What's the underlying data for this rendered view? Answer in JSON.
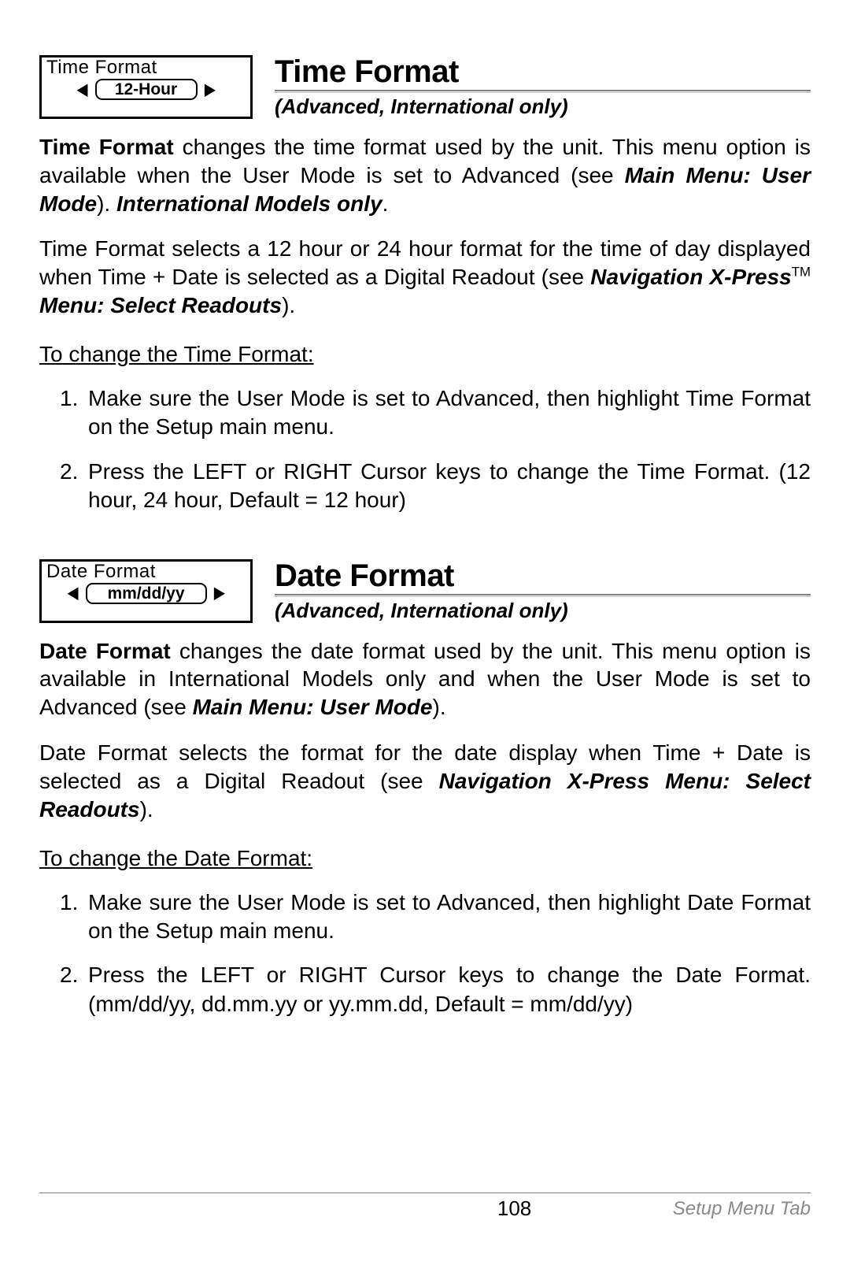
{
  "page": {
    "number": "108",
    "tab": "Setup Menu Tab"
  },
  "timeFormat": {
    "menuBox": {
      "label": "Time Format",
      "value": "12-Hour"
    },
    "title": "Time Format",
    "subtitle": "(Advanced, International only)",
    "para1": {
      "leadBold": "Time Format",
      "rest1": "changes the time format used by the unit. This menu option is available when the User Mode is set to Advanced (see",
      "ref1": "Main Menu: User Mode",
      "rest2": ").",
      "tailItal": "International Models only",
      "period": "."
    },
    "para2": {
      "text1": "Time Format selects a 12 hour or 24 hour format for the time of day displayed when Time + Date is selected as a Digital Readout (see",
      "ref": "Navigation X-Press",
      "tm": "TM",
      "ref2": "Menu: Select Readouts",
      "tail": ")."
    },
    "instrHead": "To change the Time Format:",
    "steps": {
      "s1": "Make sure the User Mode is set to Advanced, then highlight Time Format on the Setup main menu.",
      "s2": "Press the LEFT or RIGHT Cursor keys to change the Time Format. (12 hour, 24 hour, Default = 12 hour)"
    }
  },
  "dateFormat": {
    "menuBox": {
      "label": "Date Format",
      "value": "mm/dd/yy"
    },
    "title": "Date Format",
    "subtitle": "(Advanced, International only)",
    "para1": {
      "leadBold": "Date Format",
      "rest1": "changes the date format used by the unit. This menu option is available in International Models only and when the User Mode is set to Advanced (see",
      "ref1": "Main Menu: User Mode",
      "rest2": ")."
    },
    "para2": {
      "text1": "Date Format selects the format for the date display when Time + Date is selected as a Digital Readout (see",
      "ref": "Navigation X-Press Menu: Select Readouts",
      "tail": ")."
    },
    "instrHead": "To change the Date Format:",
    "steps": {
      "s1": "Make sure the User Mode is set to Advanced, then highlight Date Format on the Setup main menu.",
      "s2": "Press the LEFT or RIGHT Cursor keys to change the Date Format. (mm/dd/yy, dd.mm.yy or yy.mm.dd, Default = mm/dd/yy)"
    }
  },
  "arrows": {
    "left": "◀",
    "right": "▶"
  }
}
